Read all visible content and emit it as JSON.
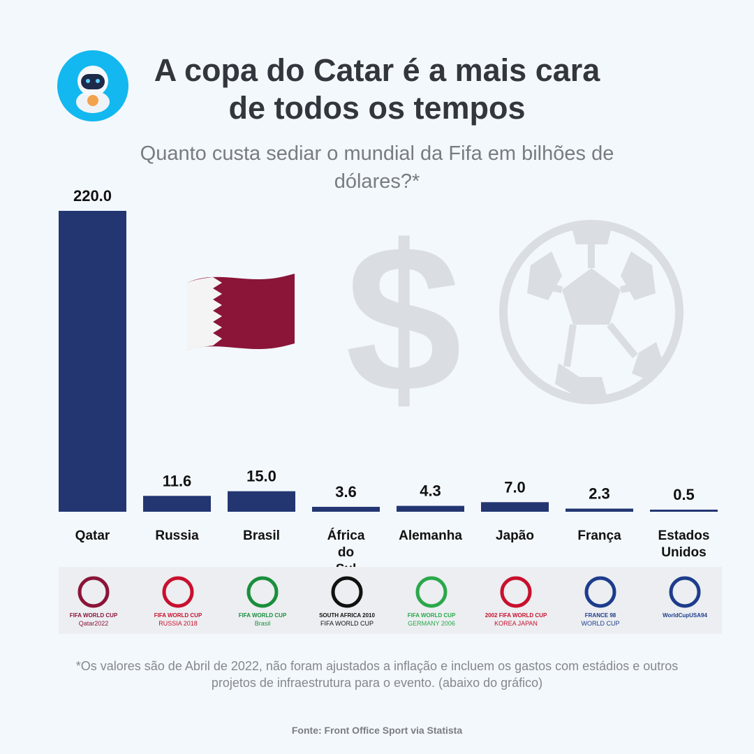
{
  "header": {
    "title": "A copa do Catar é a mais cara de todos os tempos",
    "subtitle": "Quanto custa sediar o mundial da Fifa em bilhões de dólares?*"
  },
  "decorations": {
    "avatar": "astronaut-avatar-icon",
    "flag": "qatar-flag-icon",
    "dollar": "dollar-sign-icon",
    "ball": "soccer-ball-icon",
    "dollar_glyph": "$"
  },
  "colors": {
    "bar": "#233672",
    "background": "#f3f8fc",
    "avatar_bg": "#12b8ef",
    "qatar_maroon": "#8a1538"
  },
  "chart_data": {
    "type": "bar",
    "categories": [
      "Qatar",
      "Russia",
      "Brasil",
      "África do Sul",
      "Alemanha",
      "Japão",
      "França",
      "Estados Unidos"
    ],
    "values": [
      220.0,
      11.6,
      15.0,
      3.6,
      4.3,
      7.0,
      2.3,
      0.5
    ],
    "value_labels": [
      "220.0",
      "11.6",
      "15.0",
      "3.6",
      "4.3",
      "7.0",
      "2.3",
      "0.5"
    ],
    "ylim": [
      0,
      220
    ],
    "grid": false,
    "legend": "none"
  },
  "logos": [
    {
      "name": "FIFA WORLD CUP",
      "sub": "Qatar2022",
      "color": "#8a1538"
    },
    {
      "name": "FIFA WORLD CUP",
      "sub": "RUSSIA 2018",
      "color": "#c8102e"
    },
    {
      "name": "FIFA WORLD CUP",
      "sub": "Brasil",
      "color": "#1a8f3c"
    },
    {
      "name": "SOUTH AFRICA 2010",
      "sub": "FIFA WORLD CUP",
      "color": "#111111"
    },
    {
      "name": "FIFA WORLD CUP",
      "sub": "GERMANY 2006",
      "color": "#2aa84a"
    },
    {
      "name": "2002 FIFA WORLD CUP",
      "sub": "KOREA JAPAN",
      "color": "#c8102e"
    },
    {
      "name": "FRANCE 98",
      "sub": "WORLD CUP",
      "color": "#1e3c8c"
    },
    {
      "name": "WorldCupUSA94",
      "sub": "",
      "color": "#1e3c8c"
    }
  ],
  "footnote": "*Os valores são de Abril de 2022, não foram ajustados a inflação e incluem os gastos com estádios e outros projetos de infraestrutura para o evento. (abaixo do gráfico)",
  "source": "Fonte: Front Office Sport via Statista"
}
